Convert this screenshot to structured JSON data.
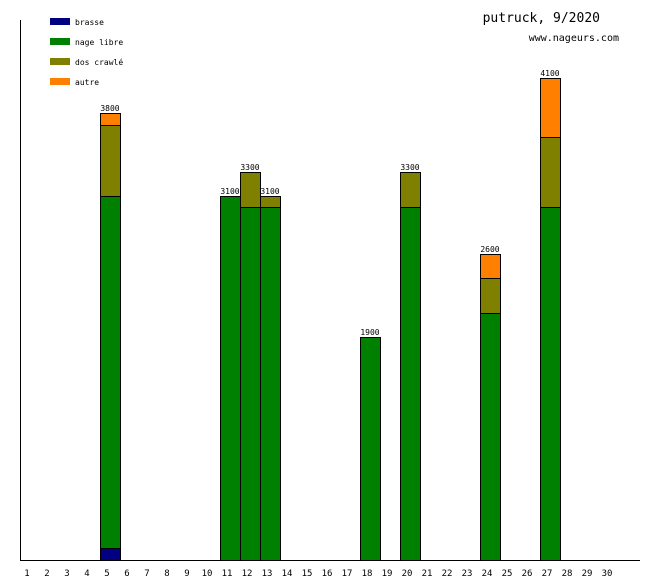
{
  "chart_data": {
    "type": "bar",
    "stacked": true,
    "title": "putruck, 9/2020",
    "subtitle": "www.nageurs.com",
    "xlabel": "",
    "ylabel": "",
    "categories": [
      "1",
      "2",
      "3",
      "4",
      "5",
      "6",
      "7",
      "8",
      "9",
      "10",
      "11",
      "12",
      "13",
      "14",
      "15",
      "16",
      "17",
      "18",
      "19",
      "20",
      "21",
      "22",
      "23",
      "24",
      "25",
      "26",
      "27",
      "28",
      "29",
      "30"
    ],
    "ylim": [
      0,
      4100
    ],
    "legend_position": "top-left",
    "series": [
      {
        "name": "brasse",
        "color": "#000080",
        "values": [
          0,
          0,
          0,
          0,
          100,
          0,
          0,
          0,
          0,
          0,
          0,
          0,
          0,
          0,
          0,
          0,
          0,
          0,
          0,
          0,
          0,
          0,
          0,
          0,
          0,
          0,
          0,
          0,
          0,
          0
        ]
      },
      {
        "name": "nage libre",
        "color": "#008000",
        "values": [
          0,
          0,
          0,
          0,
          3000,
          0,
          0,
          0,
          0,
          0,
          3100,
          3000,
          3000,
          0,
          0,
          0,
          0,
          1900,
          0,
          3000,
          0,
          0,
          0,
          2100,
          0,
          0,
          3000,
          0,
          0,
          0
        ]
      },
      {
        "name": "dos crawlé",
        "color": "#808000",
        "values": [
          0,
          0,
          0,
          0,
          600,
          0,
          0,
          0,
          0,
          0,
          0,
          300,
          100,
          0,
          0,
          0,
          0,
          0,
          0,
          300,
          0,
          0,
          0,
          300,
          0,
          0,
          600,
          0,
          0,
          0
        ]
      },
      {
        "name": "autre",
        "color": "#ff8000",
        "values": [
          0,
          0,
          0,
          0,
          100,
          0,
          0,
          0,
          0,
          0,
          0,
          0,
          0,
          0,
          0,
          0,
          0,
          0,
          0,
          0,
          0,
          0,
          0,
          200,
          0,
          0,
          500,
          0,
          0,
          0
        ]
      }
    ],
    "totals": [
      "",
      "",
      "",
      "",
      "3800",
      "",
      "",
      "",
      "",
      "",
      "3100",
      "3300",
      "3100",
      "",
      "",
      "",
      "",
      "1900",
      "",
      "3300",
      "",
      "",
      "",
      "2600",
      "",
      "",
      "4100",
      "",
      "",
      ""
    ]
  }
}
